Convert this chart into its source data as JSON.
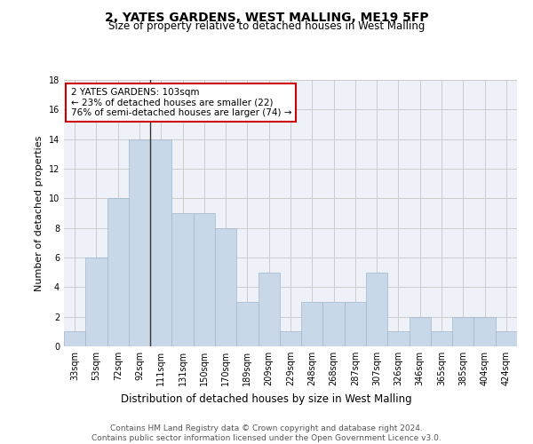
{
  "title": "2, YATES GARDENS, WEST MALLING, ME19 5FP",
  "subtitle": "Size of property relative to detached houses in West Malling",
  "xlabel": "Distribution of detached houses by size in West Malling",
  "ylabel": "Number of detached properties",
  "categories": [
    "33sqm",
    "53sqm",
    "72sqm",
    "92sqm",
    "111sqm",
    "131sqm",
    "150sqm",
    "170sqm",
    "189sqm",
    "209sqm",
    "229sqm",
    "248sqm",
    "268sqm",
    "287sqm",
    "307sqm",
    "326sqm",
    "346sqm",
    "365sqm",
    "385sqm",
    "404sqm",
    "424sqm"
  ],
  "values": [
    1,
    6,
    10,
    14,
    14,
    9,
    9,
    8,
    3,
    5,
    1,
    3,
    3,
    3,
    5,
    1,
    2,
    1,
    2,
    2,
    1
  ],
  "bar_color": "#c8d8e8",
  "bar_edge_color": "#a0b8cc",
  "highlight_index": 4,
  "annotation_box_text": "2 YATES GARDENS: 103sqm\n← 23% of detached houses are smaller (22)\n76% of semi-detached houses are larger (74) →",
  "annotation_box_color": "#ffffff",
  "annotation_box_edge_color": "#cc0000",
  "marker_line_color": "#333333",
  "ylim": [
    0,
    18
  ],
  "yticks": [
    0,
    2,
    4,
    6,
    8,
    10,
    12,
    14,
    16,
    18
  ],
  "grid_color": "#cccccc",
  "background_color": "#eef2f8",
  "footer_text": "Contains HM Land Registry data © Crown copyright and database right 2024.\nContains public sector information licensed under the Open Government Licence v3.0.",
  "title_fontsize": 10,
  "subtitle_fontsize": 8.5,
  "xlabel_fontsize": 8.5,
  "ylabel_fontsize": 8,
  "tick_fontsize": 7,
  "annotation_fontsize": 7.5,
  "footer_fontsize": 6.5
}
